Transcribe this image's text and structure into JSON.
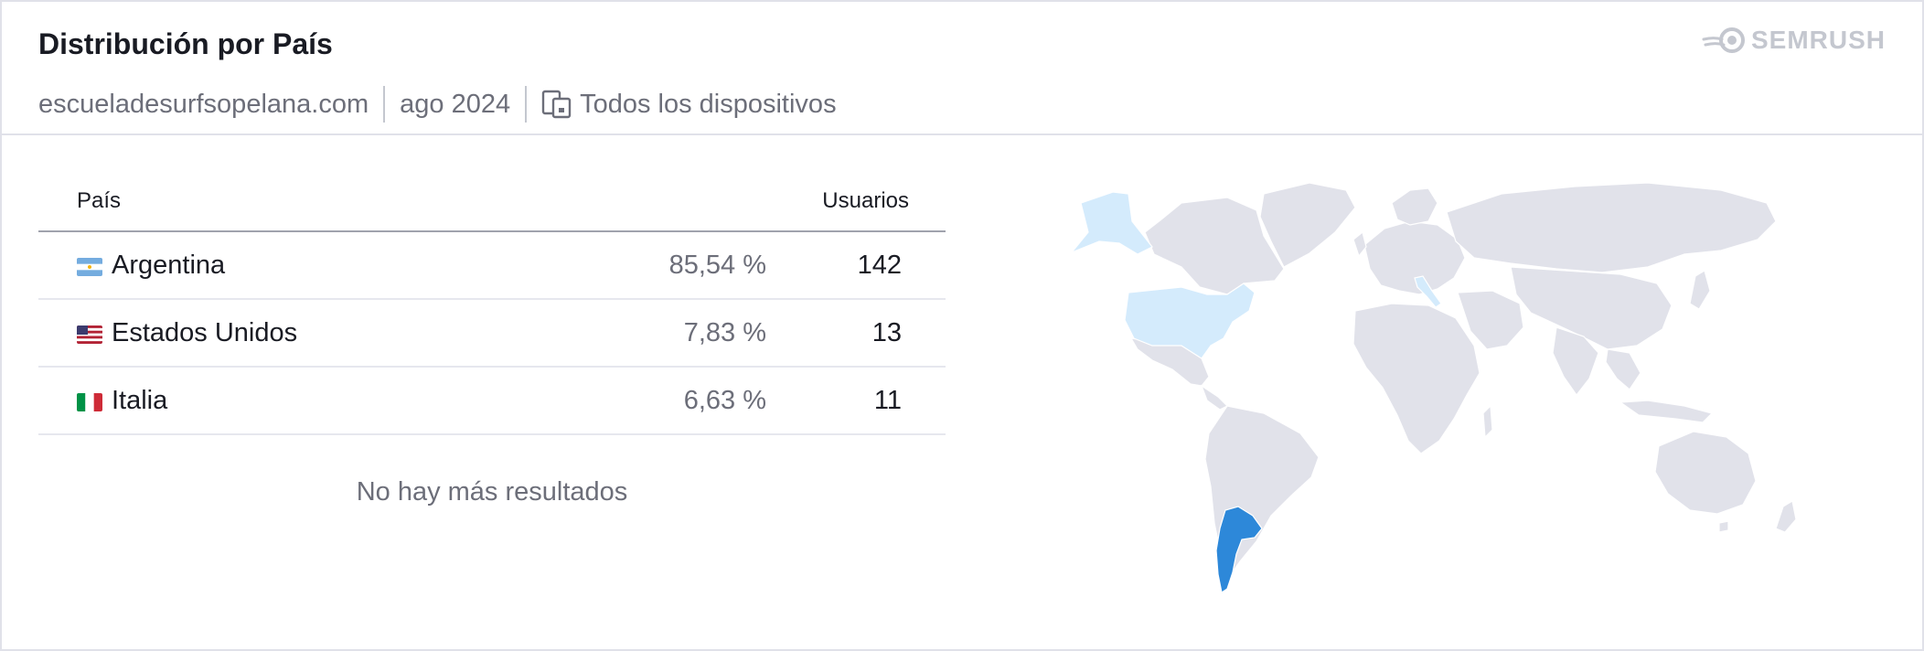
{
  "header": {
    "title": "Distribución por País",
    "domain": "escueladesurfsopelana.com",
    "date": "ago 2024",
    "device_icon": "devices-icon",
    "devices": "Todos los dispositivos",
    "logo_text": "SEMRUSH",
    "logo_icon": "semrush-fire-icon"
  },
  "table": {
    "col_country": "País",
    "col_users": "Usuarios",
    "rows": [
      {
        "flag_icon": "flag-argentina-icon",
        "country": "Argentina",
        "pct": "85,54  %",
        "users": "142"
      },
      {
        "flag_icon": "flag-usa-icon",
        "country": "Estados Unidos",
        "pct": "7,83  %",
        "users": "13"
      },
      {
        "flag_icon": "flag-italy-icon",
        "country": "Italia",
        "pct": "6,63  %",
        "users": "11"
      }
    ],
    "empty_message": "No hay más resultados"
  },
  "map": {
    "highlight_strong": "Argentina",
    "highlight_light": [
      "Estados Unidos",
      "Italia"
    ],
    "colors": {
      "base": "#e1e2ea",
      "light": "#d4ebfc",
      "strong": "#2d88d9",
      "border": "#ffffff"
    }
  },
  "colors": {
    "text_primary": "#191b23",
    "text_secondary": "#6c6e79",
    "divider": "#e0e1e9"
  }
}
